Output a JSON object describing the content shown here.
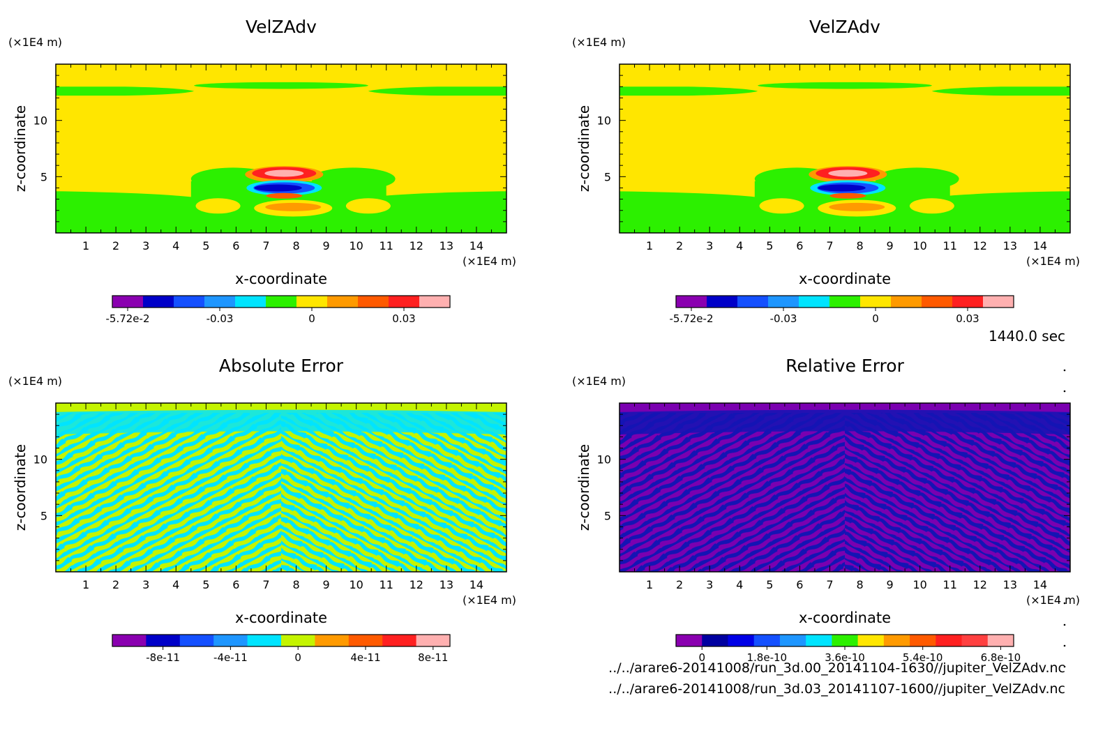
{
  "time_label": "1440.0 sec",
  "files": [
    "../../arare6-20141008/run_3d.00_20141104-1630//jupiter_VelZAdv.nc",
    "../../arare6-20141008/run_3d.03_20141107-1600//jupiter_VelZAdv.nc"
  ],
  "chart_data": [
    {
      "type": "heatmap",
      "title": "VelZAdv",
      "xlabel": "x-coordinate",
      "ylabel": "z-coordinate",
      "x_unit": "(×1E4 m)",
      "y_unit": "(×1E4 m)",
      "xlim": [
        0,
        15
      ],
      "ylim": [
        0,
        15
      ],
      "xticks": [
        "1",
        "2",
        "3",
        "4",
        "5",
        "6",
        "7",
        "8",
        "9",
        "10",
        "11",
        "12",
        "13",
        "14"
      ],
      "yticks": [
        "5",
        "10"
      ],
      "field": "velzadv",
      "colorbar": {
        "colors": [
          "#8a00b0",
          "#0000c8",
          "#1450ff",
          "#1e96ff",
          "#00e4ff",
          "#2cf000",
          "#ffe600",
          "#ff9a00",
          "#ff5a00",
          "#ff2020",
          "#ffb0b0"
        ],
        "ticks": [
          "-5.72e-2",
          "-0.03",
          "0",
          "0.03"
        ],
        "tick_pos": [
          0,
          3,
          6,
          9
        ]
      }
    },
    {
      "type": "heatmap",
      "title": "VelZAdv",
      "xlabel": "x-coordinate",
      "ylabel": "z-coordinate",
      "x_unit": "(×1E4 m)",
      "y_unit": "(×1E4 m)",
      "xlim": [
        0,
        15
      ],
      "ylim": [
        0,
        15
      ],
      "xticks": [
        "1",
        "2",
        "3",
        "4",
        "5",
        "6",
        "7",
        "8",
        "9",
        "10",
        "11",
        "12",
        "13",
        "14"
      ],
      "yticks": [
        "5",
        "10"
      ],
      "field": "velzadv",
      "colorbar": {
        "colors": [
          "#8a00b0",
          "#0000c8",
          "#1450ff",
          "#1e96ff",
          "#00e4ff",
          "#2cf000",
          "#ffe600",
          "#ff9a00",
          "#ff5a00",
          "#ff2020",
          "#ffb0b0"
        ],
        "ticks": [
          "-5.72e-2",
          "-0.03",
          "0",
          "0.03"
        ],
        "tick_pos": [
          0,
          3,
          6,
          9
        ]
      }
    },
    {
      "type": "heatmap",
      "title": "Absolute Error",
      "xlabel": "x-coordinate",
      "ylabel": "z-coordinate",
      "x_unit": "(×1E4 m)",
      "y_unit": "(×1E4 m)",
      "xlim": [
        0,
        15
      ],
      "ylim": [
        0,
        15
      ],
      "xticks": [
        "1",
        "2",
        "3",
        "4",
        "5",
        "6",
        "7",
        "8",
        "9",
        "10",
        "11",
        "12",
        "13",
        "14"
      ],
      "yticks": [
        "5",
        "10"
      ],
      "field": "abs_error",
      "colorbar": {
        "colors": [
          "#8a00b0",
          "#0000c8",
          "#1450ff",
          "#1e96ff",
          "#00e4ff",
          "#c4f400",
          "#ff9a00",
          "#ff5a00",
          "#ff2020",
          "#ffb0b0"
        ],
        "ticks": [
          "-8e-11",
          "-4e-11",
          "0",
          "4e-11",
          "8e-11"
        ],
        "tick_pos": [
          1,
          3,
          5,
          7,
          9
        ]
      }
    },
    {
      "type": "heatmap",
      "title": "Relative Error",
      "xlabel": "x-coordinate",
      "ylabel": "z-coordinate",
      "x_unit": "(×1E4 m)",
      "y_unit": "(×1E4 m)",
      "xlim": [
        0,
        15
      ],
      "ylim": [
        0,
        15
      ],
      "xticks": [
        "1",
        "2",
        "3",
        "4",
        "5",
        "6",
        "7",
        "8",
        "9",
        "10",
        "11",
        "12",
        "13",
        "14"
      ],
      "yticks": [
        "5",
        "10"
      ],
      "field": "rel_error",
      "colorbar": {
        "colors": [
          "#8a00b0",
          "#0000a0",
          "#0000e6",
          "#1450ff",
          "#1e96ff",
          "#00e4ff",
          "#2cf000",
          "#ffe600",
          "#ff9a00",
          "#ff5a00",
          "#ff2020",
          "#ff4040",
          "#ffb0b0"
        ],
        "ticks": [
          "0",
          "1.8e-10",
          "3.6e-10",
          "5.4e-10",
          "6.8e-10"
        ],
        "tick_pos": [
          0.5,
          3,
          6,
          9,
          12
        ]
      }
    }
  ]
}
